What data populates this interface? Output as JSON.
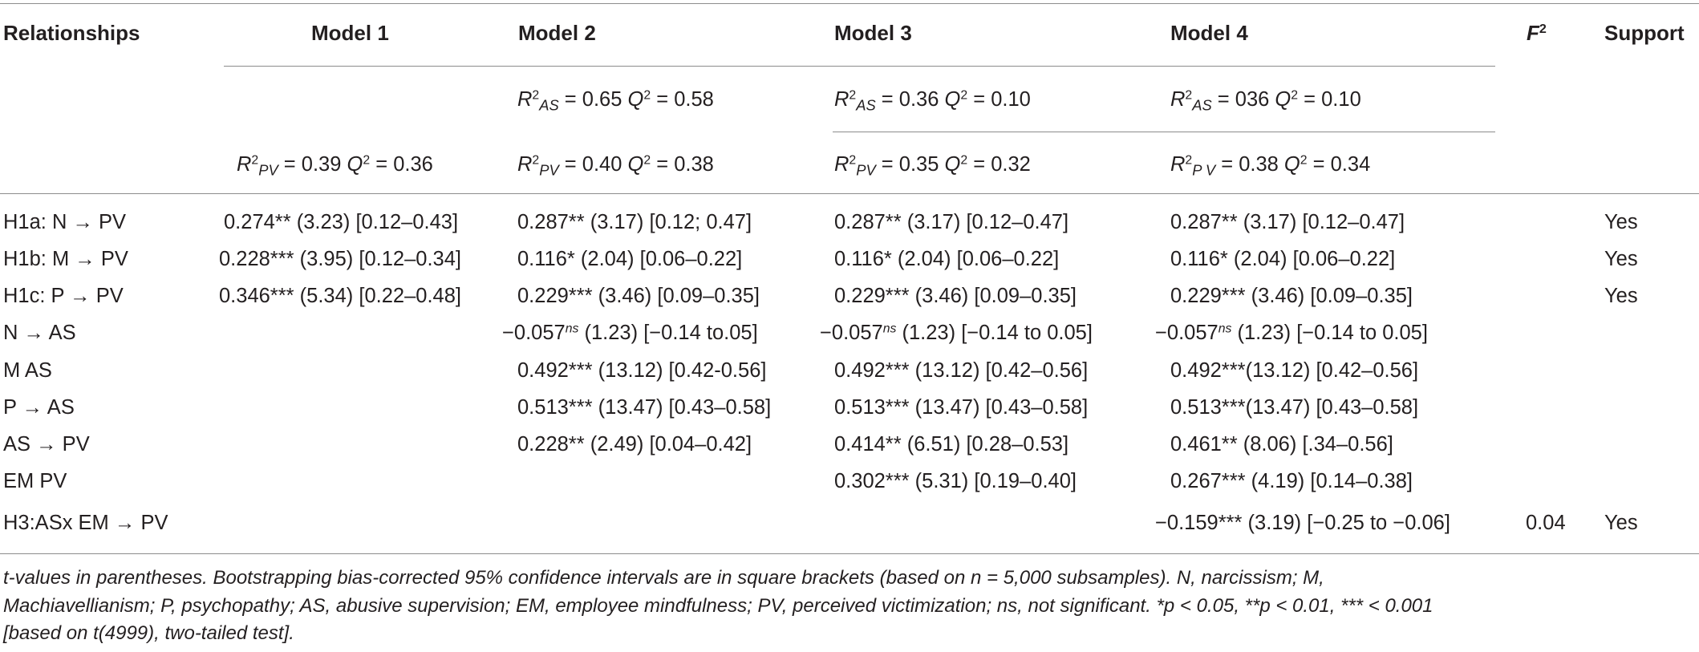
{
  "header": {
    "relationships": "Relationships",
    "model1": "Model 1",
    "model2": "Model 2",
    "model3": "Model 3",
    "model4": "Model 4",
    "f2_letter": "F",
    "f2_exp": "2",
    "support": "Support"
  },
  "stats": {
    "m2_as": {
      "r": "R",
      "r_exp": "2",
      "r_sub": "AS",
      "r_val": " = 0.65 ",
      "q": "Q",
      "q_exp": "2",
      "q_val": " = 0.58"
    },
    "m3_as": {
      "r": "R",
      "r_exp": "2",
      "r_sub": "AS",
      "r_val": " = 0.36 ",
      "q": "Q",
      "q_exp": "2",
      "q_val": " = 0.10"
    },
    "m4_as": {
      "r": "R",
      "r_exp": "2",
      "r_sub": "AS",
      "r_val": " = 036 ",
      "q": "Q",
      "q_exp": "2",
      "q_val": " = 0.10"
    },
    "m1_pv": {
      "r": "R",
      "r_exp": "2",
      "r_sub": "PV",
      "r_val": " = 0.39 ",
      "q": "Q",
      "q_exp": "2",
      "q_val": " = 0.36"
    },
    "m2_pv": {
      "r": "R",
      "r_exp": "2",
      "r_sub": "PV",
      "r_val": " = 0.40 ",
      "q": "Q",
      "q_exp": "2",
      "q_val": " = 0.38"
    },
    "m3_pv": {
      "r": "R",
      "r_exp": "2",
      "r_sub": "PV",
      "r_val": " = 0.35 ",
      "q": "Q",
      "q_exp": "2",
      "q_val": " = 0.32"
    },
    "m4_pv": {
      "r": "R",
      "r_exp": "2",
      "r_sub": "P V",
      "r_val": " = 0.38 ",
      "q": "Q",
      "q_exp": "2",
      "q_val": " = 0.34"
    }
  },
  "rows": [
    {
      "rel": "H1a: N → PV",
      "m1": "0.274** (3.23) [0.12–0.43]",
      "m2": "0.287** (3.17) [0.12; 0.47]",
      "m3": "0.287** (3.17) [0.12–0.47]",
      "m4": "0.287** (3.17) [0.12–0.47]",
      "f2": "",
      "support": "Yes"
    },
    {
      "rel": "H1b: M → PV",
      "m1": "0.228*** (3.95) [0.12–0.34]",
      "m2": "0.116* (2.04) [0.06–0.22]",
      "m3": "0.116* (2.04) [0.06–0.22]",
      "m4": "0.116* (2.04) [0.06–0.22]",
      "f2": "",
      "support": "Yes"
    },
    {
      "rel": "H1c: P → PV",
      "m1": "0.346*** (5.34) [0.22–0.48]",
      "m2": "0.229*** (3.46) [0.09–0.35]",
      "m3": "0.229*** (3.46) [0.09–0.35]",
      "m4": "0.229*** (3.46) [0.09–0.35]",
      "f2": "",
      "support": "Yes"
    },
    {
      "rel": "N → AS",
      "m1": "",
      "m2_a": "−0.057",
      "m2_ns": "ns",
      "m2_b": " (1.23) [−0.14 to.05]",
      "m3_a": "−0.057",
      "m3_ns": "ns",
      "m3_b": " (1.23) [−0.14 to 0.05]",
      "m4_a": "−0.057",
      "m4_ns": "ns",
      "m4_b": " (1.23) [−0.14 to 0.05]",
      "f2": "",
      "support": ""
    },
    {
      "rel": "M AS",
      "m1": "",
      "m2": "0.492*** (13.12) [0.42-0.56]",
      "m3": "0.492*** (13.12) [0.42–0.56]",
      "m4": "0.492***(13.12) [0.42–0.56]",
      "f2": "",
      "support": ""
    },
    {
      "rel": "P → AS",
      "m1": "",
      "m2": "0.513*** (13.47) [0.43–0.58]",
      "m3": "0.513*** (13.47) [0.43–0.58]",
      "m4": "0.513***(13.47) [0.43–0.58]",
      "f2": "",
      "support": ""
    },
    {
      "rel": "AS → PV",
      "m1": "",
      "m2": "0.228** (2.49) [0.04–0.42]",
      "m3": "0.414** (6.51) [0.28–0.53]",
      "m4": "0.461** (8.06) [.34–0.56]",
      "f2": "",
      "support": ""
    },
    {
      "rel": "EM PV",
      "m1": "",
      "m2": "",
      "m3": "0.302*** (5.31) [0.19–0.40]",
      "m4": "0.267*** (4.19) [0.14–0.38]",
      "f2": "",
      "support": ""
    },
    {
      "rel": "H3:ASx EM → PV",
      "m1": "",
      "m2": "",
      "m3": "",
      "m4": "−0.159*** (3.19) [−0.25 to −0.06]",
      "f2": "0.04",
      "support": "Yes"
    }
  ],
  "footnote": {
    "line1": "t-values in parentheses. Bootstrapping bias-corrected 95% confidence intervals are in square brackets (based on n = 5,000 subsamples). N, narcissism; M,",
    "line2": "Machiavellianism; P, psychopathy; AS, abusive supervision; EM, employee mindfulness; PV, perceived victimization; ns, not significant. *p < 0.05, **p < 0.01, *** < 0.001",
    "line3": "[based on t(4999), two-tailed test]."
  }
}
